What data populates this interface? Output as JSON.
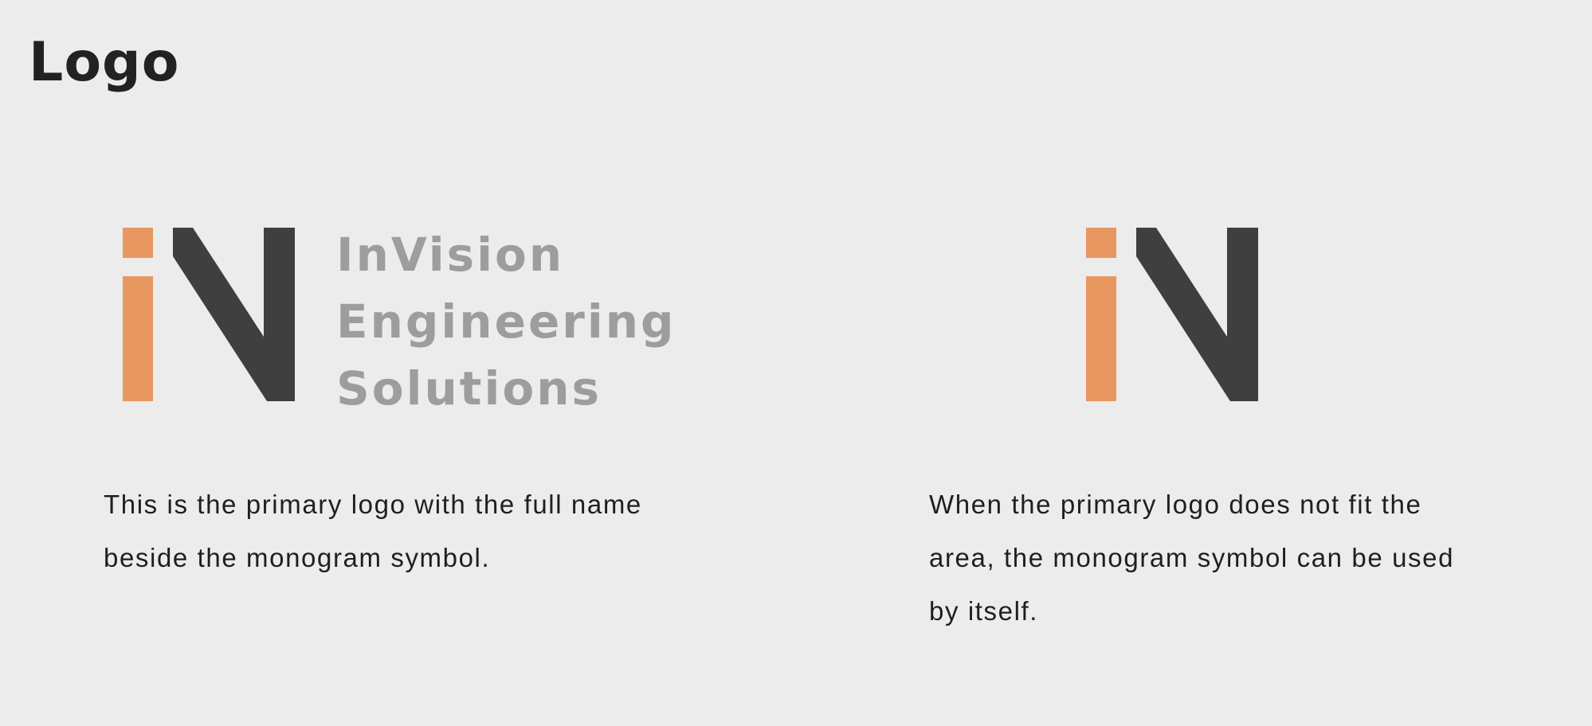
{
  "page": {
    "title": "Logo"
  },
  "colors": {
    "background": "#ececec",
    "accent_orange": "#e89760",
    "monogram_dark": "#3f3f3f",
    "wordmark_gray": "#9d9d9d",
    "text": "#1f1f1f"
  },
  "primary_logo": {
    "monogram": "iN",
    "wordmark_lines": [
      "InVision",
      "Engineering",
      "Solutions"
    ],
    "description": "This is the primary logo with the full name beside the monogram symbol."
  },
  "secondary_logo": {
    "monogram": "iN",
    "description": "When the primary logo does not fit the area, the monogram symbol can be used by itself."
  }
}
